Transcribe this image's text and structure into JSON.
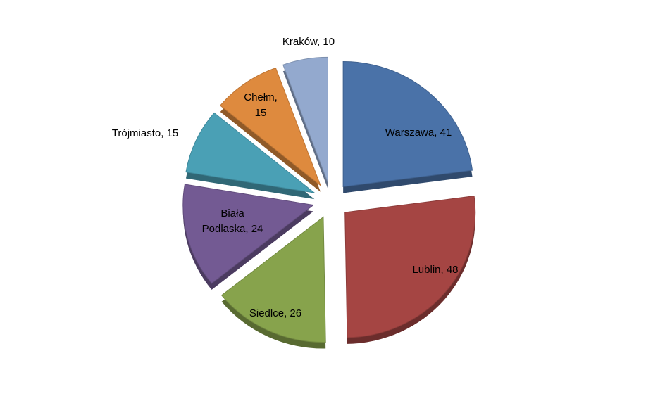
{
  "chart_data": {
    "type": "pie",
    "categories": [
      "Warszawa",
      "Lublin",
      "Siedlce",
      "Biała Podlaska",
      "Trójmiasto",
      "Chełm",
      "Kraków"
    ],
    "values": [
      41,
      48,
      26,
      24,
      15,
      15,
      10
    ],
    "colors": [
      "#4a72a8",
      "#a54543",
      "#87a34c",
      "#735a93",
      "#4aa0b5",
      "#de8a3e",
      "#93a9ce"
    ]
  }
}
